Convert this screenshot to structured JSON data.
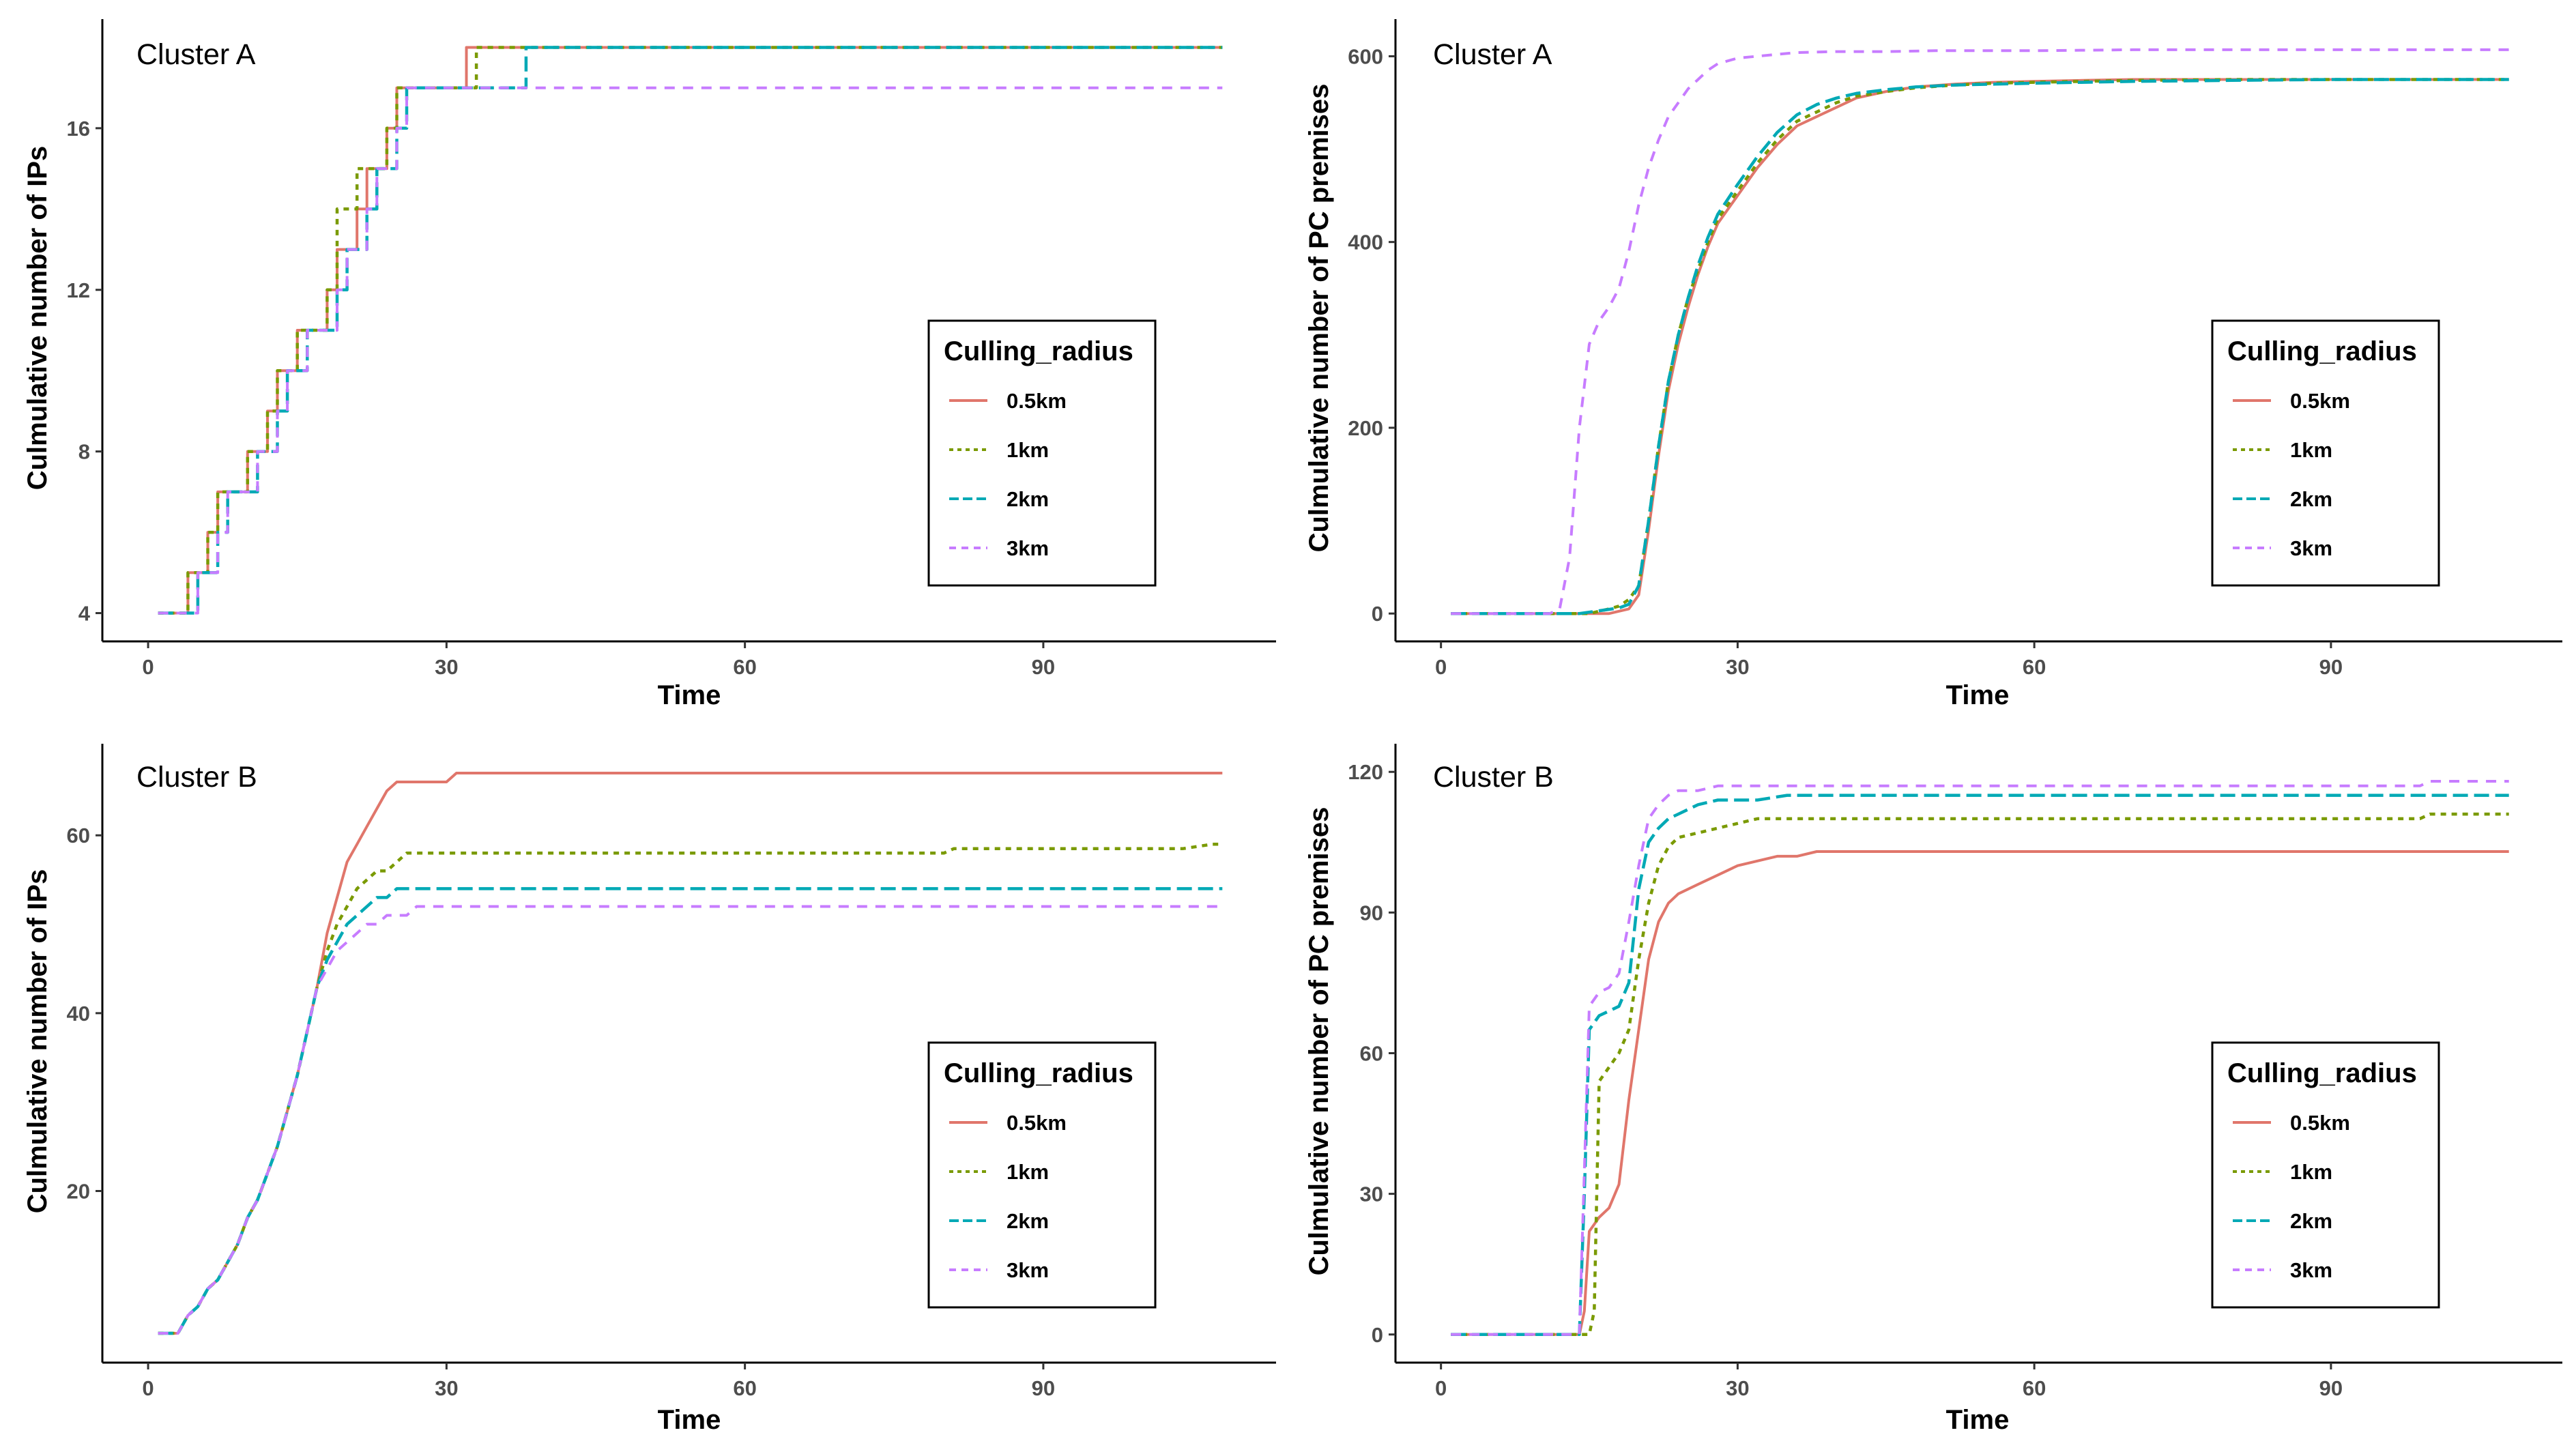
{
  "colors": {
    "0.5km": "#e0766b",
    "1km": "#7a9a01",
    "2km": "#00a9b5",
    "3km": "#c77cff"
  },
  "chart_data": [
    {
      "type": "line",
      "label": "Cluster A",
      "xlabel": "Time",
      "ylabel": "Culmulative number of IPs",
      "xlim": [
        -4.6,
        113.4
      ],
      "ylim": [
        3.3,
        18.7
      ],
      "xticks": [
        0,
        30,
        60,
        90
      ],
      "xtick_labels": [
        "0",
        "30",
        "60",
        "90"
      ],
      "yticks": [
        4,
        8,
        12,
        16
      ],
      "ytick_labels": [
        "4",
        "8",
        "12",
        "16"
      ],
      "step": true,
      "legend": {
        "title": "Culling_radius",
        "position": "right"
      },
      "series": [
        {
          "name": "0.5km",
          "x": [
            1,
            3,
            4,
            6,
            7,
            9,
            10,
            12,
            13,
            15,
            16,
            18,
            19,
            21,
            22,
            24,
            25,
            28,
            32,
            108
          ],
          "y": [
            4,
            4,
            5,
            6,
            7,
            7,
            8,
            9,
            10,
            11,
            11,
            12,
            13,
            14,
            15,
            16,
            17,
            17,
            18,
            18
          ]
        },
        {
          "name": "1km",
          "x": [
            1,
            3,
            4,
            6,
            7,
            9,
            10,
            12,
            13,
            15,
            16,
            18,
            19,
            21,
            22,
            24,
            25,
            31,
            33,
            108
          ],
          "y": [
            4,
            4,
            5,
            6,
            7,
            7,
            8,
            9,
            10,
            11,
            11,
            12,
            14,
            15,
            15,
            16,
            17,
            17,
            18,
            18
          ]
        },
        {
          "name": "2km",
          "x": [
            1,
            4,
            5,
            7,
            8,
            10,
            11,
            13,
            14,
            16,
            17,
            19,
            20,
            22,
            23,
            25,
            26,
            35,
            38,
            108
          ],
          "y": [
            4,
            4,
            5,
            6,
            7,
            7,
            8,
            9,
            10,
            11,
            11,
            12,
            13,
            14,
            15,
            16,
            17,
            17,
            18,
            18
          ]
        },
        {
          "name": "3km",
          "x": [
            1,
            4,
            5,
            7,
            8,
            10,
            11,
            13,
            14,
            16,
            17,
            19,
            20,
            22,
            23,
            25,
            26,
            108
          ],
          "y": [
            4,
            4,
            5,
            6,
            7,
            7,
            8,
            9,
            10,
            11,
            11,
            12,
            13,
            14,
            15,
            16,
            17,
            17
          ]
        }
      ]
    },
    {
      "type": "line",
      "label": "Cluster A",
      "xlabel": "Time",
      "ylabel": "Culmulative number of PC premises",
      "xlim": [
        -4.6,
        113.4
      ],
      "ylim": [
        -30,
        640
      ],
      "xticks": [
        0,
        30,
        60,
        90
      ],
      "xtick_labels": [
        "0",
        "30",
        "60",
        "90"
      ],
      "yticks": [
        0,
        200,
        400,
        600
      ],
      "ytick_labels": [
        "0",
        "200",
        "400",
        "600"
      ],
      "step": false,
      "legend": {
        "title": "Culling_radius",
        "position": "right"
      },
      "series": [
        {
          "name": "0.5km",
          "x": [
            1,
            17,
            19,
            20,
            21,
            22,
            23,
            24,
            25,
            26,
            27,
            28,
            30,
            32,
            34,
            36,
            38,
            40,
            42,
            45,
            48,
            52,
            56,
            60,
            65,
            70,
            80,
            90,
            100,
            108
          ],
          "y": [
            0,
            0,
            5,
            20,
            90,
            170,
            240,
            290,
            330,
            365,
            395,
            420,
            450,
            480,
            505,
            525,
            535,
            545,
            555,
            562,
            567,
            570,
            572,
            573,
            574,
            575,
            575,
            575,
            575,
            575
          ]
        },
        {
          "name": "1km",
          "x": [
            1,
            15,
            17,
            18,
            19,
            20,
            21,
            22,
            23,
            24,
            25,
            26,
            27,
            28,
            30,
            32,
            34,
            36,
            38,
            40,
            42,
            45,
            48,
            52,
            56,
            60,
            65,
            70,
            80,
            90,
            100,
            108
          ],
          "y": [
            0,
            0,
            5,
            8,
            15,
            30,
            100,
            180,
            250,
            300,
            340,
            370,
            400,
            425,
            455,
            485,
            510,
            530,
            540,
            550,
            557,
            562,
            566,
            569,
            571,
            572,
            573,
            574,
            575,
            575,
            575,
            575
          ]
        },
        {
          "name": "2km",
          "x": [
            1,
            14,
            16,
            18,
            19,
            20,
            21,
            22,
            23,
            24,
            25,
            26,
            27,
            28,
            30,
            32,
            34,
            36,
            38,
            40,
            42,
            45,
            48,
            52,
            56,
            60,
            65,
            70,
            80,
            90,
            100,
            108
          ],
          "y": [
            0,
            0,
            3,
            6,
            10,
            30,
            100,
            180,
            250,
            300,
            340,
            375,
            405,
            430,
            462,
            492,
            518,
            537,
            548,
            555,
            560,
            564,
            567,
            569,
            570,
            571,
            572,
            573,
            574,
            575,
            575,
            575
          ]
        },
        {
          "name": "3km",
          "x": [
            1,
            11,
            12,
            13,
            14,
            15,
            16,
            17,
            18,
            19,
            20,
            21,
            22,
            23,
            24,
            25,
            26,
            27,
            28,
            30,
            32,
            34,
            36,
            40,
            45,
            50,
            60,
            70,
            80,
            90,
            100,
            108
          ],
          "y": [
            0,
            0,
            5,
            60,
            200,
            290,
            315,
            330,
            350,
            390,
            440,
            480,
            510,
            535,
            550,
            565,
            575,
            585,
            592,
            598,
            600,
            602,
            604,
            605,
            605,
            606,
            606,
            607,
            607,
            607,
            607,
            607
          ]
        }
      ]
    },
    {
      "type": "line",
      "label": "Cluster B",
      "xlabel": "Time",
      "ylabel": "Culmulative number of IPs",
      "xlim": [
        -4.6,
        113.4
      ],
      "ylim": [
        0.7,
        70.3
      ],
      "xticks": [
        0,
        30,
        60,
        90
      ],
      "xtick_labels": [
        "0",
        "30",
        "60",
        "90"
      ],
      "yticks": [
        20,
        40,
        60
      ],
      "ytick_labels": [
        "20",
        "40",
        "60"
      ],
      "step": false,
      "legend": {
        "title": "Culling_radius",
        "position": "right"
      },
      "series": [
        {
          "name": "0.5km",
          "x": [
            1,
            3,
            4,
            5,
            6,
            7,
            8,
            9,
            10,
            11,
            12,
            13,
            14,
            15,
            16,
            17,
            18,
            19,
            20,
            21,
            22,
            23,
            24,
            25,
            26,
            27,
            28,
            29,
            30,
            31,
            32,
            40,
            50,
            60,
            70,
            80,
            90,
            100,
            108
          ],
          "y": [
            4,
            4,
            6,
            7,
            9,
            10,
            12,
            14,
            17,
            19,
            22,
            25,
            29,
            33,
            38,
            43,
            49,
            53,
            57,
            59,
            61,
            63,
            65,
            66,
            66,
            66,
            66,
            66,
            66,
            67,
            67,
            67,
            67,
            67,
            67,
            67,
            67,
            67,
            67
          ]
        },
        {
          "name": "1km",
          "x": [
            1,
            3,
            4,
            5,
            6,
            7,
            8,
            9,
            10,
            11,
            12,
            13,
            14,
            15,
            16,
            17,
            18,
            19,
            20,
            21,
            22,
            23,
            24,
            25,
            26,
            27,
            30,
            40,
            50,
            60,
            70,
            80,
            81,
            90,
            100,
            104,
            107,
            108
          ],
          "y": [
            4,
            4,
            6,
            7,
            9,
            10,
            12,
            14,
            17,
            19,
            22,
            25,
            29,
            33,
            38,
            43,
            47,
            50,
            52,
            54,
            55,
            56,
            56,
            57,
            58,
            58,
            58,
            58,
            58,
            58,
            58,
            58,
            58.5,
            58.5,
            58.5,
            58.5,
            59,
            59
          ]
        },
        {
          "name": "2km",
          "x": [
            1,
            3,
            4,
            5,
            6,
            7,
            8,
            9,
            10,
            11,
            12,
            13,
            14,
            15,
            16,
            17,
            18,
            19,
            20,
            21,
            22,
            23,
            24,
            25,
            26,
            27,
            30,
            40,
            50,
            60,
            70,
            80,
            90,
            100,
            108
          ],
          "y": [
            4,
            4,
            6,
            7,
            9,
            10,
            12,
            14,
            17,
            19,
            22,
            25,
            29,
            33,
            38,
            43,
            46,
            48,
            50,
            51,
            52,
            53,
            53,
            54,
            54,
            54,
            54,
            54,
            54,
            54,
            54,
            54,
            54,
            54,
            54
          ]
        },
        {
          "name": "3km",
          "x": [
            1,
            3,
            4,
            5,
            6,
            7,
            8,
            9,
            10,
            11,
            12,
            13,
            14,
            15,
            16,
            17,
            18,
            19,
            20,
            21,
            22,
            23,
            24,
            25,
            26,
            27,
            30,
            40,
            50,
            60,
            70,
            80,
            90,
            100,
            108
          ],
          "y": [
            4,
            4,
            6,
            7,
            9,
            10,
            12,
            14,
            17,
            19,
            22,
            25,
            29,
            33,
            38,
            43,
            45,
            47,
            48,
            49,
            50,
            50,
            51,
            51,
            51,
            52,
            52,
            52,
            52,
            52,
            52,
            52,
            52,
            52,
            52
          ]
        }
      ]
    },
    {
      "type": "line",
      "label": "Cluster B",
      "xlabel": "Time",
      "ylabel": "Culmulative number of PC premises",
      "xlim": [
        -4.6,
        113.4
      ],
      "ylim": [
        -6,
        126
      ],
      "xticks": [
        0,
        30,
        60,
        90
      ],
      "xtick_labels": [
        "0",
        "30",
        "60",
        "90"
      ],
      "yticks": [
        0,
        30,
        60,
        90,
        120
      ],
      "ytick_labels": [
        "0",
        "30",
        "60",
        "90",
        "120"
      ],
      "step": false,
      "legend": {
        "title": "Culling_radius",
        "position": "right"
      },
      "series": [
        {
          "name": "0.5km",
          "x": [
            1,
            14,
            14.5,
            15,
            16,
            17,
            18,
            19,
            20,
            21,
            22,
            23,
            24,
            26,
            28,
            30,
            32,
            34,
            36,
            38,
            45,
            60,
            80,
            100,
            108
          ],
          "y": [
            0,
            0,
            5,
            22,
            25,
            27,
            32,
            50,
            65,
            80,
            88,
            92,
            94,
            96,
            98,
            100,
            101,
            102,
            102,
            103,
            103,
            103,
            103,
            103,
            103
          ]
        },
        {
          "name": "1km",
          "x": [
            1,
            15,
            15.5,
            16,
            17,
            18,
            19,
            20,
            21,
            22,
            23,
            24,
            26,
            28,
            30,
            32,
            34,
            40,
            60,
            80,
            99,
            100,
            102,
            108
          ],
          "y": [
            0,
            0,
            5,
            54,
            57,
            60,
            65,
            80,
            92,
            100,
            104,
            106,
            107,
            108,
            109,
            110,
            110,
            110,
            110,
            110,
            110,
            111,
            111,
            111
          ]
        },
        {
          "name": "2km",
          "x": [
            1,
            14,
            14.5,
            15,
            16,
            17,
            18,
            19,
            20,
            21,
            22,
            23,
            24,
            26,
            28,
            30,
            32,
            35,
            40,
            60,
            80,
            100,
            108
          ],
          "y": [
            0,
            0,
            30,
            65,
            68,
            69,
            70,
            75,
            95,
            105,
            108,
            110,
            111,
            113,
            114,
            114,
            114,
            115,
            115,
            115,
            115,
            115,
            115
          ]
        },
        {
          "name": "3km",
          "x": [
            1,
            14,
            14.5,
            15,
            16,
            17,
            18,
            19,
            20,
            21,
            22,
            23,
            24,
            26,
            28,
            30,
            32,
            35,
            40,
            60,
            80,
            99,
            100,
            101,
            108
          ],
          "y": [
            0,
            0,
            35,
            70,
            73,
            74,
            77,
            88,
            100,
            110,
            113,
            115,
            116,
            116,
            117,
            117,
            117,
            117,
            117,
            117,
            117,
            117,
            118,
            118,
            118
          ]
        }
      ]
    }
  ]
}
